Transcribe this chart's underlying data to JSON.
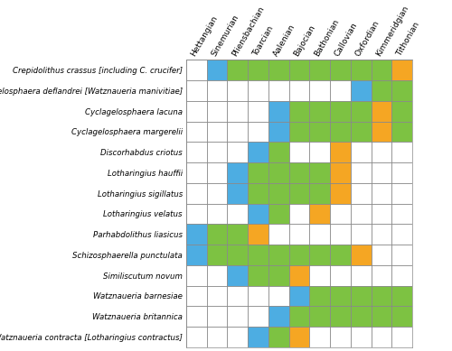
{
  "columns": [
    "Hettangian",
    "Sinemurian",
    "Pliensbachian",
    "Toarcian",
    "Aalenian",
    "Bajocian",
    "Bathonian",
    "Callovian",
    "Oxfordian",
    "Kimmeridgian",
    "Tithonian"
  ],
  "rows": [
    "Crepidolithus crassus [including C. crucifer]",
    "Cyclagelosphaera deflandrei [Watznaueria manivitiae]",
    "Cyclagelosphaera lacuna",
    "Cyclagelosphaera margerelii",
    "Discorhabdus criotus",
    "Lotharingius hauffii",
    "Lotharingius sigillatus",
    "Lotharingius velatus",
    "Parhabdolithus liasicus",
    "Schizosphaerella punctulata",
    "Similiscutum novum",
    "Watznaueria barnesiae",
    "Watznaueria britannica",
    "Watznaueria contracta [Lotharingius contractus]"
  ],
  "colors": {
    "blue": "#4DADE2",
    "green": "#7DC242",
    "orange": "#F5A623",
    "white": "#FFFFFF"
  },
  "cell_data": [
    [
      "",
      "blue",
      "green",
      "green",
      "green",
      "green",
      "green",
      "green",
      "green",
      "green",
      "orange"
    ],
    [
      "",
      "",
      "",
      "",
      "",
      "",
      "",
      "",
      "blue",
      "green",
      "green"
    ],
    [
      "",
      "",
      "",
      "",
      "blue",
      "green",
      "green",
      "green",
      "green",
      "orange",
      "green"
    ],
    [
      "",
      "",
      "",
      "",
      "blue",
      "green",
      "green",
      "green",
      "green",
      "orange",
      "green"
    ],
    [
      "",
      "",
      "",
      "blue",
      "green",
      "",
      "",
      "orange",
      "",
      "",
      ""
    ],
    [
      "",
      "",
      "blue",
      "green",
      "green",
      "green",
      "green",
      "orange",
      "",
      "",
      ""
    ],
    [
      "",
      "",
      "blue",
      "green",
      "green",
      "green",
      "green",
      "orange",
      "",
      "",
      ""
    ],
    [
      "",
      "",
      "",
      "blue",
      "green",
      "",
      "orange",
      "",
      "",
      "",
      ""
    ],
    [
      "blue",
      "green",
      "green",
      "orange",
      "",
      "",
      "",
      "",
      "",
      "",
      ""
    ],
    [
      "blue",
      "green",
      "green",
      "green",
      "green",
      "green",
      "green",
      "green",
      "orange",
      "",
      ""
    ],
    [
      "",
      "",
      "blue",
      "green",
      "green",
      "orange",
      "",
      "",
      "",
      "",
      ""
    ],
    [
      "",
      "",
      "",
      "",
      "",
      "blue",
      "green",
      "green",
      "green",
      "green",
      "green"
    ],
    [
      "",
      "",
      "",
      "",
      "blue",
      "green",
      "green",
      "green",
      "green",
      "green",
      "green"
    ],
    [
      "",
      "",
      "",
      "blue",
      "green",
      "orange",
      "",
      "",
      "",
      "",
      ""
    ]
  ],
  "fig_width": 5.0,
  "fig_height": 3.89,
  "row_label_fontsize": 6.2,
  "col_label_fontsize": 6.5,
  "border_color": "#888888",
  "bg_color": "#FFFFFF"
}
